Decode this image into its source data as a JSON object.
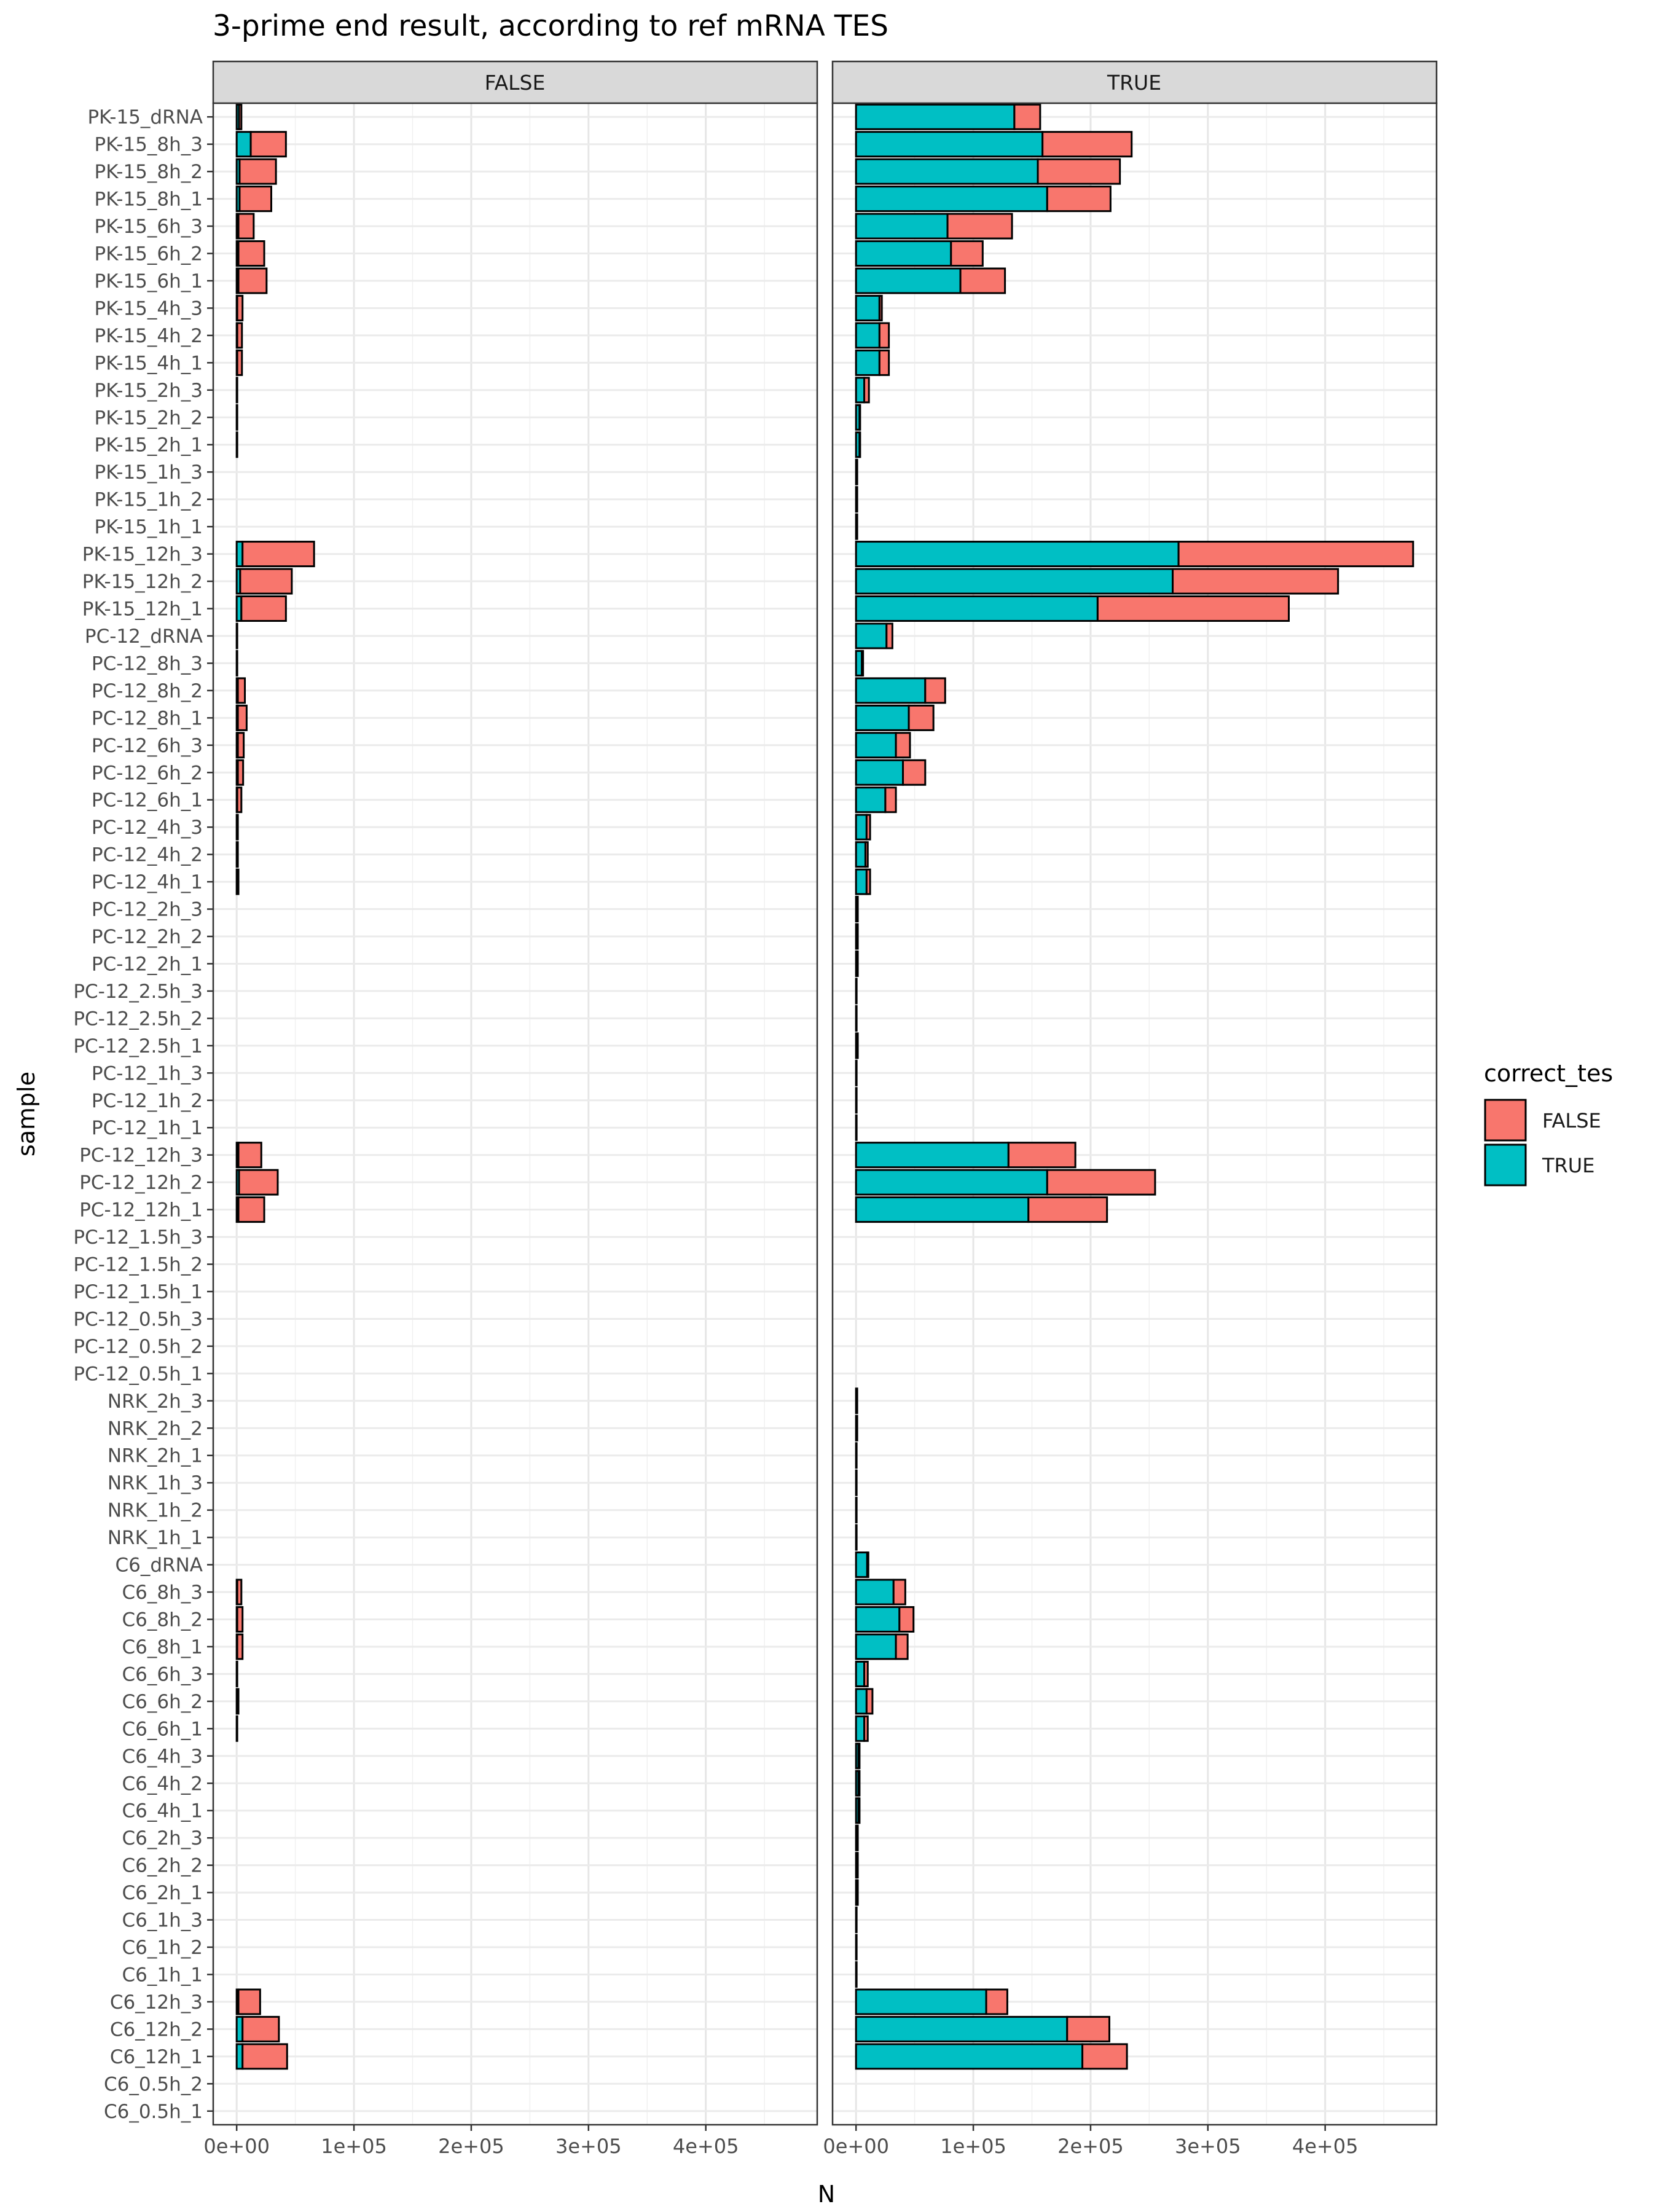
{
  "chart_data": {
    "type": "bar",
    "orientation": "horizontal",
    "stacked": true,
    "title": "3-prime end result, according to ref mRNA TES",
    "xlabel": "N",
    "ylabel": "sample",
    "xlim": [
      -20000,
      495000
    ],
    "x_ticks": [
      0,
      100000,
      200000,
      300000,
      400000
    ],
    "x_tick_labels": [
      "0e+00",
      "1e+05",
      "2e+05",
      "3e+05",
      "4e+05"
    ],
    "grid": true,
    "legend": {
      "title": "correct_tes",
      "placement": "right",
      "entries": [
        {
          "label": "FALSE",
          "color": "#F8766D"
        },
        {
          "label": "TRUE",
          "color": "#00BFC4"
        }
      ]
    },
    "facets": [
      "FALSE",
      "TRUE"
    ],
    "categories": [
      "PK-15_dRNA",
      "PK-15_8h_3",
      "PK-15_8h_2",
      "PK-15_8h_1",
      "PK-15_6h_3",
      "PK-15_6h_2",
      "PK-15_6h_1",
      "PK-15_4h_3",
      "PK-15_4h_2",
      "PK-15_4h_1",
      "PK-15_2h_3",
      "PK-15_2h_2",
      "PK-15_2h_1",
      "PK-15_1h_3",
      "PK-15_1h_2",
      "PK-15_1h_1",
      "PK-15_12h_3",
      "PK-15_12h_2",
      "PK-15_12h_1",
      "PC-12_dRNA",
      "PC-12_8h_3",
      "PC-12_8h_2",
      "PC-12_8h_1",
      "PC-12_6h_3",
      "PC-12_6h_2",
      "PC-12_6h_1",
      "PC-12_4h_3",
      "PC-12_4h_2",
      "PC-12_4h_1",
      "PC-12_2h_3",
      "PC-12_2h_2",
      "PC-12_2h_1",
      "PC-12_2.5h_3",
      "PC-12_2.5h_2",
      "PC-12_2.5h_1",
      "PC-12_1h_3",
      "PC-12_1h_2",
      "PC-12_1h_1",
      "PC-12_12h_3",
      "PC-12_12h_2",
      "PC-12_12h_1",
      "PC-12_1.5h_3",
      "PC-12_1.5h_2",
      "PC-12_1.5h_1",
      "PC-12_0.5h_3",
      "PC-12_0.5h_2",
      "PC-12_0.5h_1",
      "NRK_2h_3",
      "NRK_2h_2",
      "NRK_2h_1",
      "NRK_1h_3",
      "NRK_1h_2",
      "NRK_1h_1",
      "C6_dRNA",
      "C6_8h_3",
      "C6_8h_2",
      "C6_8h_1",
      "C6_6h_3",
      "C6_6h_2",
      "C6_6h_1",
      "C6_4h_3",
      "C6_4h_2",
      "C6_4h_1",
      "C6_2h_3",
      "C6_2h_2",
      "C6_2h_1",
      "C6_1h_3",
      "C6_1h_2",
      "C6_1h_1",
      "C6_12h_3",
      "C6_12h_2",
      "C6_12h_1",
      "C6_0.5h_2",
      "C6_0.5h_1"
    ],
    "panels": [
      {
        "name": "FALSE",
        "series": [
          {
            "name": "TRUE",
            "values": [
              2000,
              12000,
              2500,
              2500,
              1500,
              1500,
              1500,
              500,
              500,
              500,
              0,
              0,
              0,
              0,
              0,
              0,
              5000,
              3000,
              4000,
              0,
              0,
              1000,
              1000,
              1000,
              1000,
              500,
              0,
              0,
              0,
              0,
              0,
              0,
              0,
              0,
              0,
              0,
              0,
              0,
              1500,
              2000,
              1500,
              0,
              0,
              0,
              0,
              0,
              0,
              0,
              0,
              0,
              0,
              0,
              0,
              0,
              500,
              500,
              500,
              0,
              0,
              0,
              0,
              0,
              0,
              0,
              0,
              0,
              0,
              0,
              0,
              1500,
              5000,
              5000
            ]
          },
          {
            "name": "FALSE",
            "values": [
              2000,
              30000,
              31000,
              27000,
              13000,
              22000,
              24000,
              4500,
              4000,
              4000,
              500,
              500,
              500,
              0,
              0,
              0,
              61000,
              44000,
              38000,
              500,
              500,
              6000,
              7500,
              5000,
              4500,
              3500,
              1000,
              1000,
              1500,
              0,
              0,
              0,
              0,
              0,
              0,
              0,
              0,
              0,
              19500,
              33000,
              22000,
              0,
              0,
              0,
              0,
              0,
              0,
              0,
              0,
              0,
              0,
              0,
              0,
              0,
              3500,
              4500,
              4500,
              500,
              1500,
              500,
              0,
              0,
              0,
              0,
              0,
              0,
              0,
              0,
              0,
              18500,
              31000,
              38000
            ]
          }
        ]
      },
      {
        "name": "TRUE",
        "series": [
          {
            "name": "TRUE",
            "values": [
              135000,
              159000,
              155000,
              163000,
              78000,
              81000,
              89000,
              20000,
              20000,
              20000,
              7000,
              3000,
              3000,
              1000,
              1000,
              1000,
              275000,
              270000,
              206000,
              26000,
              5000,
              59000,
              45000,
              34000,
              40000,
              25000,
              9000,
              8000,
              9000,
              1000,
              1000,
              1000,
              500,
              500,
              1000,
              500,
              500,
              500,
              130000,
              163000,
              147000,
              0,
              0,
              0,
              0,
              0,
              0,
              1000,
              1000,
              500,
              500,
              500,
              500,
              9500,
              32000,
              37000,
              34000,
              7000,
              9000,
              7000,
              2000,
              2000,
              2000,
              1000,
              1000,
              1000,
              500,
              500,
              500,
              111000,
              180000,
              193000
            ]
          },
          {
            "name": "FALSE",
            "values": [
              22000,
              76000,
              70000,
              54000,
              55000,
              27000,
              38000,
              2000,
              8000,
              8000,
              4000,
              500,
              500,
              0,
              0,
              0,
              200000,
              141000,
              163000,
              5000,
              1000,
              17000,
              21000,
              12000,
              19000,
              9000,
              3000,
              2000,
              3000,
              500,
              500,
              500,
              0,
              0,
              500,
              0,
              0,
              0,
              57000,
              92000,
              67000,
              0,
              0,
              0,
              0,
              0,
              0,
              0,
              0,
              0,
              0,
              0,
              0,
              1000,
              10000,
              12000,
              10000,
              3000,
              5000,
              3000,
              1000,
              1000,
              1000,
              500,
              500,
              500,
              0,
              0,
              0,
              18000,
              36000,
              38000
            ]
          }
        ]
      }
    ]
  }
}
